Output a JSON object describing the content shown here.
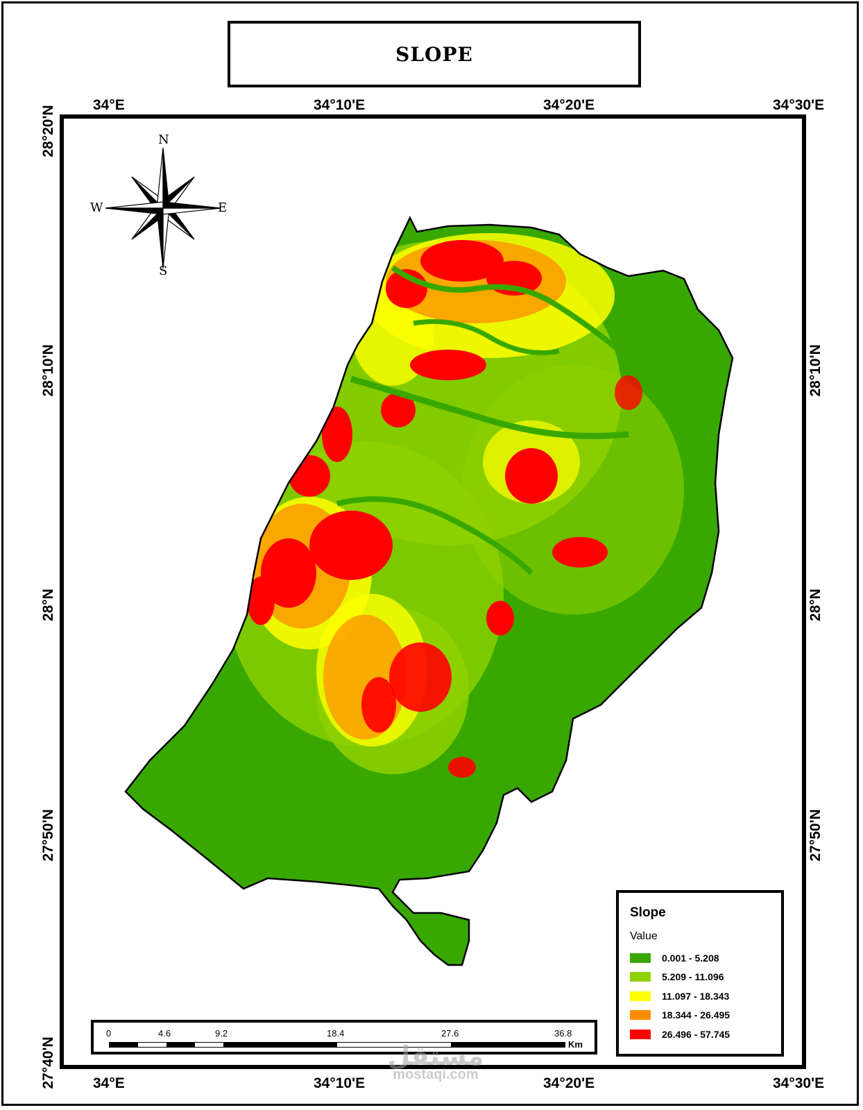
{
  "title": "SLOPE",
  "lon_labels": [
    "34°E",
    "34°10'E",
    "34°20'E",
    "34°30'E"
  ],
  "lat_labels": [
    "28°20'N",
    "28°10'N",
    "28°N",
    "27°50'N",
    "27°40'N"
  ],
  "compass": {
    "n": "N",
    "s": "S",
    "e": "E",
    "w": "W"
  },
  "legend": {
    "title": "Slope",
    "subtitle": "Value",
    "classes": [
      {
        "label": "0.001 - 5.208",
        "color": "#38a800"
      },
      {
        "label": "5.209 - 11.096",
        "color": "#8fd100"
      },
      {
        "label": "11.097 - 18.343",
        "color": "#ffff00"
      },
      {
        "label": "18.344 - 26.495",
        "color": "#ff8c00"
      },
      {
        "label": "26.496 - 57.745",
        "color": "#ff0000"
      }
    ]
  },
  "scale_bar": {
    "ticks": [
      "0",
      "4.6",
      "9.2",
      "18.4",
      "27.6",
      "36.8"
    ],
    "unit": "Km"
  },
  "watermark": {
    "arabic": "مستقل",
    "latin": "mostaqi.com"
  }
}
